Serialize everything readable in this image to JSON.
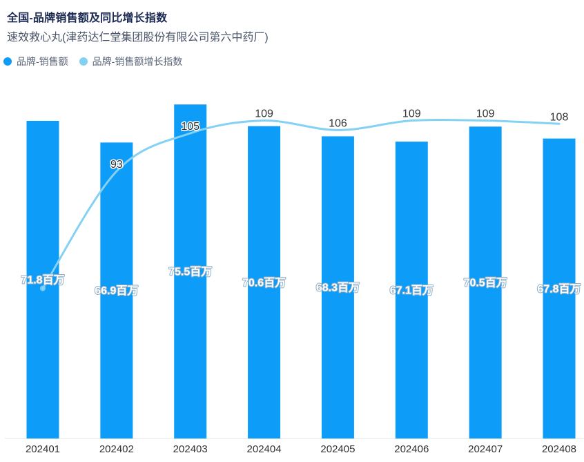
{
  "header": {
    "title": "全国-品牌销售额及同比增长指数",
    "subtitle": "速效救心丸(津药达仁堂集团股份有限公司第六中药厂)"
  },
  "legend": {
    "items": [
      {
        "label": "品牌-销售额",
        "color": "#0E9CF9",
        "icon": "circle"
      },
      {
        "label": "品牌-销售额增长指数",
        "color": "#85D1F4",
        "icon": "circle"
      }
    ]
  },
  "chart_data": {
    "type": "bar+line",
    "title": "全国-品牌销售额及同比增长指数",
    "subtitle": "速效救心丸(津药达仁堂集团股份有限公司第六中药厂)",
    "categories": [
      "202401",
      "202402",
      "202403",
      "202404",
      "202405",
      "202406",
      "202407",
      "202408"
    ],
    "series": [
      {
        "name": "品牌-销售额",
        "type": "bar",
        "unit": "百万",
        "values": [
          71.8,
          66.9,
          75.5,
          70.6,
          68.3,
          67.1,
          70.5,
          67.8
        ],
        "labels": [
          "71.8百万",
          "66.9百万",
          "75.5百万",
          "70.6百万",
          "68.3百万",
          "67.1百万",
          "70.5百万",
          "67.8百万"
        ],
        "color": "#0E9CF9"
      },
      {
        "name": "品牌-销售额增长指数",
        "type": "line",
        "values": [
          56,
          93,
          105,
          109,
          106,
          109,
          109,
          108
        ],
        "labels": [
          "",
          "93",
          "105",
          "109",
          "106",
          "109",
          "109",
          "108"
        ],
        "color": "#85D1F4"
      }
    ],
    "bar_axis_range": [
      0,
      80
    ],
    "axes_hidden": true,
    "grid": false,
    "legend_position": "top-left"
  },
  "colors": {
    "background": "#FFFFFF",
    "title": "#1C2A52",
    "subtitle": "#4A5468",
    "legend_text": "#5A6478",
    "axis_line": "#E7E7E7",
    "tick_label": "#303133",
    "bar": "#0E9CF9",
    "line": "#85D1F4",
    "bar_label_fill": "#FFFFFF",
    "bar_label_stroke": "#8FAEC6",
    "line_label_fill": "#333333",
    "line_label_stroke": "#FFFFFF"
  }
}
